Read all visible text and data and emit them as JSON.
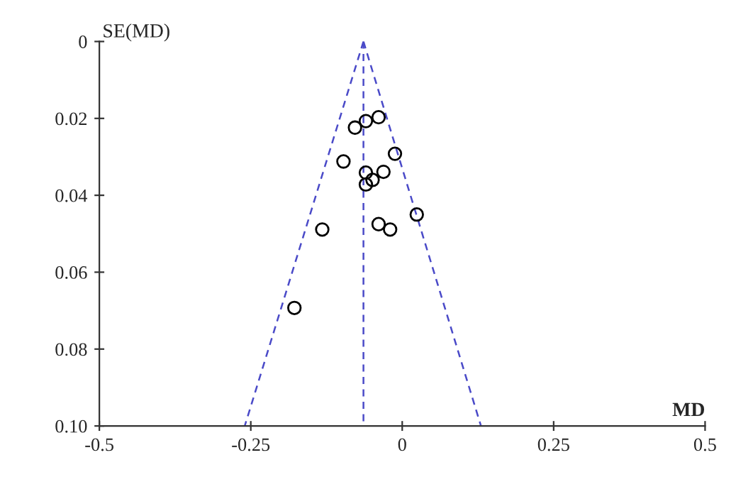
{
  "chart_data": {
    "type": "scatter",
    "xlabel": "MD",
    "ylabel": "SE(MD)",
    "xlim": [
      -0.5,
      0.5
    ],
    "xticks": [
      -0.5,
      -0.25,
      0,
      0.25,
      0.5
    ],
    "ylim": [
      0.1,
      0
    ],
    "yticks": [
      0,
      0.02,
      0.04,
      0.06,
      0.08,
      {
        "value": 0.1,
        "label": "0.10"
      }
    ],
    "grid": false,
    "legend": false,
    "series": [
      {
        "color": "#000000",
        "marker": "circle",
        "x": [
          -0.039,
          -0.06,
          -0.078,
          -0.012,
          -0.097,
          -0.031,
          -0.06,
          -0.049,
          -0.06,
          0.024,
          -0.039,
          -0.02,
          -0.132,
          -0.178
        ],
        "values": [
          0.0197,
          0.0207,
          0.0224,
          0.0292,
          0.0312,
          0.0339,
          0.0341,
          0.036,
          0.0372,
          0.045,
          0.0475,
          0.0489,
          0.0489,
          0.0693
        ]
      },
      {
        "type": "line",
        "color": "#4a4ac8",
        "line_style": "dashed",
        "marker": "none",
        "x": [
          -0.064,
          -0.26
        ],
        "values": [
          0,
          0.1
        ]
      },
      {
        "type": "line",
        "color": "#4a4ac8",
        "line_style": "dashed",
        "marker": "none",
        "x": [
          -0.064,
          0.13
        ],
        "values": [
          0,
          0.1
        ]
      },
      {
        "type": "line",
        "color": "#4a4ac8",
        "line_style": "dashed",
        "marker": "none",
        "x": [
          -0.064,
          -0.064
        ],
        "values": [
          0,
          0.1
        ]
      }
    ]
  }
}
